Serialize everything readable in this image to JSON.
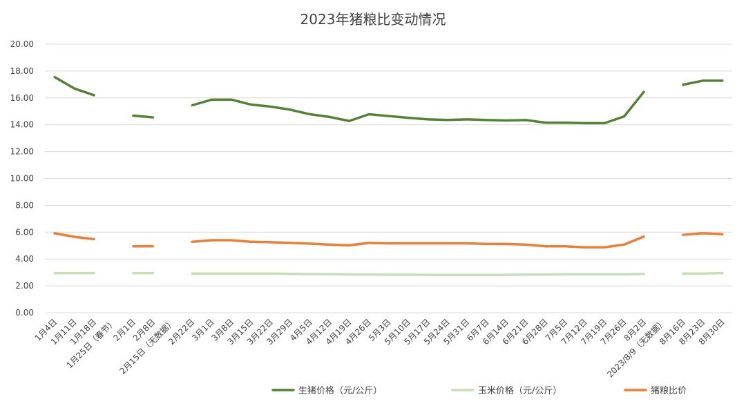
{
  "chart_data": {
    "type": "line",
    "title": "2023年猪粮比变动情况",
    "ylim": [
      0,
      20
    ],
    "yticks": [
      "0.00",
      "2.00",
      "4.00",
      "6.00",
      "8.00",
      "10.00",
      "12.00",
      "14.00",
      "16.00",
      "18.00",
      "20.00"
    ],
    "grid": true,
    "legend_position": "bottom",
    "categories": [
      "1月4日",
      "1月11日",
      "1月18日",
      "1月25日（春节）",
      "2月1日",
      "2月8日",
      "2月15日（无数据）",
      "2月22日",
      "3月1日",
      "3月8日",
      "3月15日",
      "3月22日",
      "3月29日",
      "4月5日",
      "4月12日",
      "4月19日",
      "4月26日",
      "5月3日",
      "5月10日",
      "5月17日",
      "5月24日",
      "5月31日",
      "6月7日",
      "6月14日",
      "6月21日",
      "6月28日",
      "7月5日",
      "7月12日",
      "7月19日",
      "7月26日",
      "8月2日",
      "2023/8/9（无数据）",
      "8月16日",
      "8月23日",
      "8月30日"
    ],
    "series": [
      {
        "name": "生猪价格（元/公斤）",
        "color": "#548235",
        "values": [
          17.55,
          16.7,
          16.2,
          null,
          14.68,
          14.55,
          null,
          15.45,
          15.87,
          15.87,
          15.5,
          15.35,
          15.12,
          14.78,
          14.58,
          14.28,
          14.78,
          14.65,
          14.52,
          14.4,
          14.36,
          14.4,
          14.35,
          14.32,
          14.35,
          14.15,
          14.15,
          14.12,
          14.12,
          14.62,
          16.45,
          null,
          16.98,
          17.28,
          17.28
        ]
      },
      {
        "name": "玉米价格（元/公斤）",
        "color": "#c5e0b4",
        "values": [
          2.95,
          2.95,
          2.95,
          null,
          2.95,
          2.95,
          null,
          2.92,
          2.92,
          2.92,
          2.92,
          2.92,
          2.9,
          2.88,
          2.88,
          2.85,
          2.85,
          2.83,
          2.83,
          2.82,
          2.82,
          2.82,
          2.82,
          2.82,
          2.84,
          2.84,
          2.86,
          2.86,
          2.86,
          2.86,
          2.9,
          null,
          2.92,
          2.92,
          2.95
        ]
      },
      {
        "name": "猪粮比价",
        "color": "#ed7d31",
        "values": [
          5.92,
          5.65,
          5.48,
          null,
          4.95,
          4.95,
          null,
          5.28,
          5.4,
          5.4,
          5.28,
          5.25,
          5.2,
          5.15,
          5.07,
          5.02,
          5.2,
          5.17,
          5.17,
          5.17,
          5.17,
          5.17,
          5.12,
          5.12,
          5.07,
          4.95,
          4.95,
          4.87,
          4.87,
          5.08,
          5.67,
          null,
          5.8,
          5.92,
          5.85
        ]
      }
    ]
  }
}
